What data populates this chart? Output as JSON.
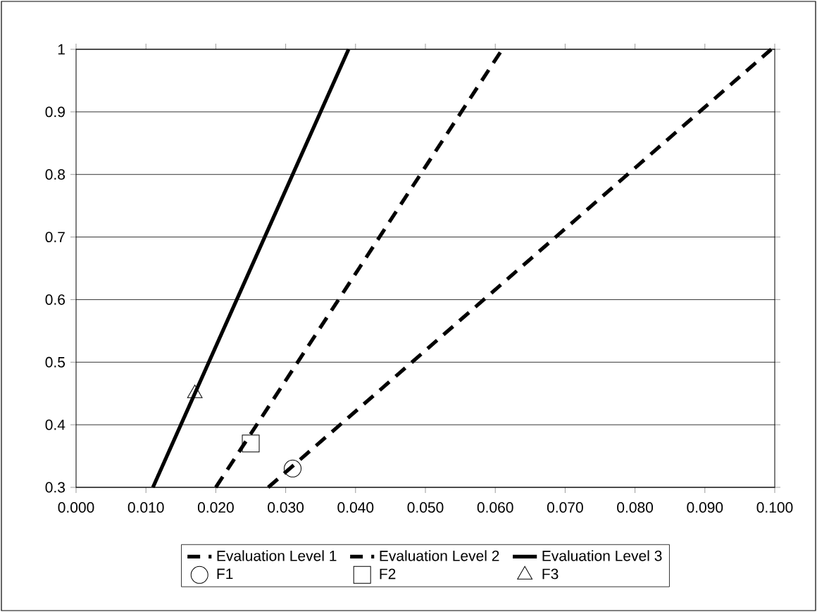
{
  "chart_data": {
    "type": "line",
    "xlim": [
      0,
      0.1
    ],
    "ylim": [
      0.3,
      1
    ],
    "xticks": [
      {
        "value": 0,
        "label": "0.000"
      },
      {
        "value": 0.01,
        "label": "0.010"
      },
      {
        "value": 0.02,
        "label": "0.020"
      },
      {
        "value": 0.03,
        "label": "0.030"
      },
      {
        "value": 0.04,
        "label": "0.040"
      },
      {
        "value": 0.05,
        "label": "0.050"
      },
      {
        "value": 0.06,
        "label": "0.060"
      },
      {
        "value": 0.07,
        "label": "0.070"
      },
      {
        "value": 0.08,
        "label": "0.080"
      },
      {
        "value": 0.09,
        "label": "0.090"
      },
      {
        "value": 0.1,
        "label": "0.100"
      }
    ],
    "yticks": [
      0.3,
      0.4,
      0.5,
      0.6,
      0.7,
      0.8,
      0.9,
      1
    ],
    "grid": "y",
    "legend": "bottom",
    "series": [
      {
        "name": "Evaluation Level 1",
        "color": "#000000",
        "line_style": "dashed",
        "marker": "none",
        "x": [
          0.0275,
          0.0995
        ],
        "values": [
          0.3,
          1
        ]
      },
      {
        "name": "Evaluation Level 2",
        "color": "#000000",
        "line_style": "dashed",
        "marker": "none",
        "x": [
          0.02,
          0.061
        ],
        "values": [
          0.3,
          1
        ]
      },
      {
        "name": "Evaluation Level 3",
        "color": "#000000",
        "line_style": "solid",
        "marker": "none",
        "x": [
          0.011,
          0.039
        ],
        "values": [
          0.3,
          1
        ]
      },
      {
        "name": "F1",
        "type": "scatter",
        "color": "#000000",
        "marker": "circle",
        "x": [
          0.031
        ],
        "values": [
          0.33
        ]
      },
      {
        "name": "F2",
        "type": "scatter",
        "color": "#000000",
        "marker": "square",
        "x": [
          0.025
        ],
        "values": [
          0.37
        ]
      },
      {
        "name": "F3",
        "type": "scatter",
        "color": "#000000",
        "marker": "triangle",
        "x": [
          0.017
        ],
        "values": [
          0.45
        ]
      }
    ]
  }
}
